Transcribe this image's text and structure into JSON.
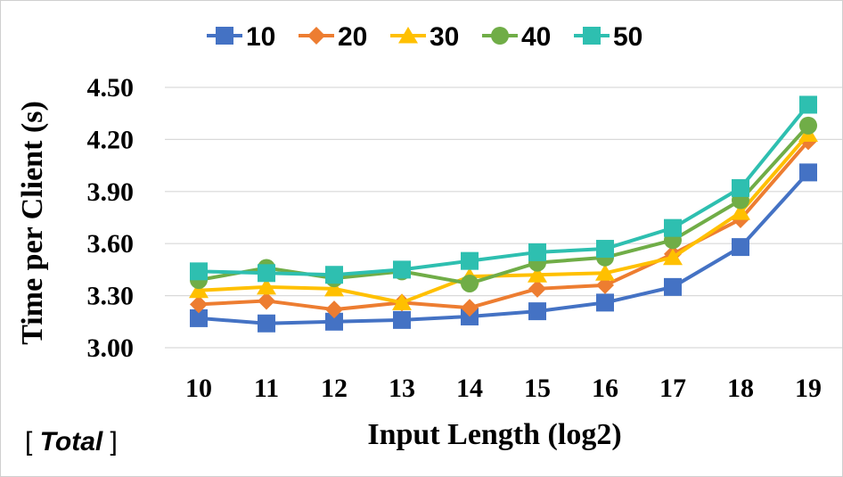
{
  "chart_data": {
    "type": "line",
    "xlabel": "Input Length (log2)",
    "ylabel": "Time per Client (s)",
    "x": [
      10,
      11,
      12,
      13,
      14,
      15,
      16,
      17,
      18,
      19
    ],
    "ylim": [
      3.0,
      4.5
    ],
    "yticks": [
      "3.00",
      "3.30",
      "3.60",
      "3.90",
      "4.20",
      "4.50"
    ],
    "grid": true,
    "legend_position": "top",
    "series": [
      {
        "name": "10",
        "color": "#4472C4",
        "marker": "square",
        "values": [
          3.17,
          3.14,
          3.15,
          3.16,
          3.18,
          3.21,
          3.26,
          3.35,
          3.58,
          4.01
        ]
      },
      {
        "name": "20",
        "color": "#ED7D31",
        "marker": "diamond",
        "values": [
          3.25,
          3.27,
          3.22,
          3.26,
          3.23,
          3.34,
          3.36,
          3.54,
          3.74,
          4.19
        ]
      },
      {
        "name": "30",
        "color": "#FFC000",
        "marker": "triangle",
        "values": [
          3.33,
          3.35,
          3.34,
          3.26,
          3.41,
          3.42,
          3.43,
          3.52,
          3.78,
          4.23
        ]
      },
      {
        "name": "40",
        "color": "#70AD47",
        "marker": "circle",
        "values": [
          3.39,
          3.46,
          3.4,
          3.44,
          3.37,
          3.49,
          3.52,
          3.62,
          3.85,
          4.28
        ]
      },
      {
        "name": "50",
        "color": "#2EBFB0",
        "marker": "square",
        "values": [
          3.44,
          3.43,
          3.42,
          3.45,
          3.5,
          3.55,
          3.57,
          3.69,
          3.92,
          4.4
        ]
      }
    ],
    "annotation": {
      "open": "[ ",
      "emphasis": "Total",
      "close": " ]"
    }
  }
}
